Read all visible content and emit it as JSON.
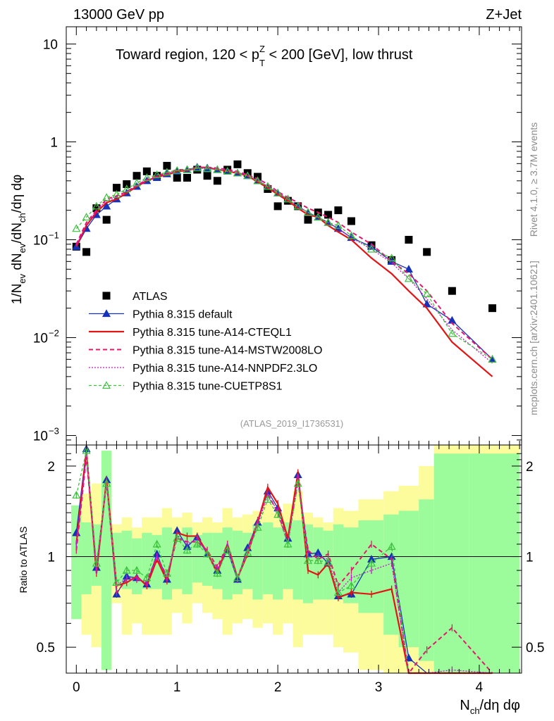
{
  "header": {
    "energy": "13000 GeV pp",
    "process": "Z+Jet",
    "plot_title": "Toward region, 120 < p_T^Z < 200 [GeV], low thrust",
    "side_note": "Rivet 4.1.0, ≥ 3.7M events",
    "site": "mcplots.cern.ch [arXiv:2401.10621]",
    "analysis_id": "(ATLAS_2019_I1736531)"
  },
  "axes": {
    "top_ylabel": "1/N_ev dN_ev/dN_ch/dη dφ",
    "bottom_ylabel": "Ratio to ATLAS",
    "xlabel": "N_ch/dη dφ",
    "x_ticks": [
      "0",
      "1",
      "2",
      "3",
      "4"
    ],
    "y_ticks_top": [
      "10",
      "1",
      "10^-1",
      "10^-2",
      "10^-3"
    ],
    "y_ticks_ratio": [
      "2",
      "1",
      "0.5"
    ]
  },
  "legend": [
    "ATLAS",
    "Pythia 8.315 default",
    "Pythia 8.315 tune-A14-CTEQL1",
    "Pythia 8.315 tune-A14-MSTW2008LO",
    "Pythia 8.315 tune-A14-NNPDF2.3LO",
    "Pythia 8.315 tune-CUETP8S1"
  ],
  "chart_data": {
    "type": "scatter",
    "title": "Toward region, 120 < p_T^Z < 200 [GeV], low thrust",
    "xlabel": "N_ch/dη dφ",
    "ylabel": "1/N_ev dN_ev/dN_ch/dη dφ",
    "xlim": [
      -0.1,
      4.42
    ],
    "ylim": [
      0.0008,
      15
    ],
    "yscale": "log",
    "ratio_ylim": [
      0.41,
      2.35
    ],
    "colors": {
      "atlas": "#000000",
      "default": "#1632b8",
      "cteql1": "#e41414",
      "mstw": "#e3186e",
      "nnpdf": "#d210d2",
      "cuetp8s1": "#3dc23d",
      "band_inner": "#9cfc9c",
      "band_outer": "#fcfc9c"
    },
    "bins": [
      [
        -0.05,
        0.05
      ],
      [
        0.05,
        0.15
      ],
      [
        0.15,
        0.25
      ],
      [
        0.25,
        0.35
      ],
      [
        0.35,
        0.45
      ],
      [
        0.45,
        0.55
      ],
      [
        0.55,
        0.65
      ],
      [
        0.65,
        0.75
      ],
      [
        0.75,
        0.85
      ],
      [
        0.85,
        0.95
      ],
      [
        0.95,
        1.05
      ],
      [
        1.05,
        1.15
      ],
      [
        1.15,
        1.25
      ],
      [
        1.25,
        1.35
      ],
      [
        1.35,
        1.45
      ],
      [
        1.45,
        1.55
      ],
      [
        1.55,
        1.65
      ],
      [
        1.65,
        1.75
      ],
      [
        1.75,
        1.85
      ],
      [
        1.85,
        1.95
      ],
      [
        1.95,
        2.05
      ],
      [
        2.05,
        2.15
      ],
      [
        2.15,
        2.25
      ],
      [
        2.25,
        2.35
      ],
      [
        2.35,
        2.45
      ],
      [
        2.45,
        2.55
      ],
      [
        2.55,
        2.65
      ],
      [
        2.65,
        2.8
      ],
      [
        2.8,
        3.05
      ],
      [
        3.05,
        3.2
      ],
      [
        3.2,
        3.4
      ],
      [
        3.4,
        3.55
      ],
      [
        3.55,
        3.9
      ],
      [
        3.9,
        4.4
      ]
    ],
    "band_outer": [
      [
        0.62,
        1.48
      ],
      [
        0.55,
        1.62
      ],
      [
        0.5,
        1.75
      ],
      [
        0.42,
        2.25
      ],
      [
        0.7,
        1.28
      ],
      [
        0.55,
        1.35
      ],
      [
        0.6,
        1.25
      ],
      [
        0.55,
        1.35
      ],
      [
        0.55,
        1.35
      ],
      [
        0.55,
        1.45
      ],
      [
        0.65,
        1.35
      ],
      [
        0.6,
        1.4
      ],
      [
        0.7,
        1.3
      ],
      [
        0.65,
        1.35
      ],
      [
        0.62,
        1.3
      ],
      [
        0.55,
        1.45
      ],
      [
        0.6,
        1.35
      ],
      [
        0.62,
        1.38
      ],
      [
        0.58,
        1.42
      ],
      [
        0.6,
        1.5
      ],
      [
        0.55,
        1.4
      ],
      [
        0.6,
        1.5
      ],
      [
        0.5,
        1.65
      ],
      [
        0.55,
        1.4
      ],
      [
        0.55,
        1.35
      ],
      [
        0.55,
        1.3
      ],
      [
        0.5,
        1.45
      ],
      [
        0.48,
        1.42
      ],
      [
        0.42,
        1.55
      ],
      [
        0.4,
        1.65
      ],
      [
        0.4,
        1.72
      ],
      [
        0.4,
        2.0
      ],
      [
        0.4,
        2.4
      ],
      [
        0.4,
        2.4
      ]
    ],
    "band_inner": [
      [
        0.62,
        1.48
      ],
      [
        0.75,
        1.3
      ],
      [
        0.8,
        1.28
      ],
      [
        0.42,
        2.25
      ],
      [
        0.8,
        1.2
      ],
      [
        0.78,
        1.22
      ],
      [
        0.75,
        1.15
      ],
      [
        0.78,
        1.2
      ],
      [
        0.78,
        1.18
      ],
      [
        0.72,
        1.25
      ],
      [
        0.78,
        1.2
      ],
      [
        0.75,
        1.25
      ],
      [
        0.82,
        1.18
      ],
      [
        0.8,
        1.2
      ],
      [
        0.78,
        1.2
      ],
      [
        0.72,
        1.25
      ],
      [
        0.75,
        1.22
      ],
      [
        0.78,
        1.2
      ],
      [
        0.72,
        1.28
      ],
      [
        0.75,
        1.3
      ],
      [
        0.72,
        1.25
      ],
      [
        0.78,
        1.3
      ],
      [
        0.72,
        1.32
      ],
      [
        0.7,
        1.28
      ],
      [
        0.72,
        1.25
      ],
      [
        0.72,
        1.22
      ],
      [
        0.72,
        1.28
      ],
      [
        0.7,
        1.25
      ],
      [
        0.65,
        1.32
      ],
      [
        0.55,
        1.38
      ],
      [
        0.5,
        1.42
      ],
      [
        0.45,
        1.55
      ],
      [
        0.4,
        2.2
      ],
      [
        0.4,
        2.2
      ]
    ],
    "x": [
      0,
      0.1,
      0.2,
      0.3,
      0.4,
      0.5,
      0.6,
      0.7,
      0.8,
      0.9,
      1.0,
      1.1,
      1.2,
      1.3,
      1.4,
      1.5,
      1.6,
      1.7,
      1.8,
      1.9,
      2.0,
      2.1,
      2.2,
      2.3,
      2.4,
      2.5,
      2.6,
      2.73,
      2.93,
      3.13,
      3.3,
      3.48,
      3.73,
      4.13
    ],
    "series": [
      {
        "key": "atlas",
        "name": "ATLAS",
        "marker": "square",
        "line": "none",
        "values": [
          0.085,
          0.075,
          0.21,
          0.16,
          0.34,
          0.37,
          0.45,
          0.5,
          0.45,
          0.57,
          0.43,
          0.43,
          0.52,
          0.45,
          0.4,
          0.52,
          0.59,
          0.48,
          0.44,
          0.33,
          0.22,
          0.25,
          0.22,
          0.16,
          0.19,
          0.18,
          0.2,
          0.155,
          0.088,
          0.062,
          0.1,
          0.075,
          0.03,
          0.02
        ]
      },
      {
        "key": "default",
        "name": "Pythia 8.315 default",
        "marker": "triangle-filled",
        "line": "solid",
        "values": [
          0.085,
          0.13,
          0.18,
          0.22,
          0.26,
          0.3,
          0.35,
          0.4,
          0.43,
          0.47,
          0.5,
          0.52,
          0.55,
          0.54,
          0.52,
          0.5,
          0.48,
          0.45,
          0.4,
          0.35,
          0.3,
          0.26,
          0.22,
          0.19,
          0.17,
          0.15,
          0.13,
          0.105,
          0.085,
          0.06,
          0.05,
          0.022,
          0.015,
          0.006
        ],
        "ratio": [
          1.2,
          2.28,
          0.92,
          1.8,
          0.75,
          0.86,
          0.85,
          0.81,
          1.02,
          0.84,
          1.22,
          1.08,
          1.16,
          1.02,
          0.9,
          1.05,
          0.84,
          1.07,
          1.3,
          1.65,
          1.45,
          1.15,
          1.87,
          1.02,
          1.03,
          0.95,
          0.74,
          0.75,
          0.98,
          1.0,
          0.46,
          0.35,
          0.3,
          0.3
        ]
      },
      {
        "key": "cteql1",
        "name": "Pythia 8.315 tune-A14-CTEQL1",
        "marker": "none",
        "line": "solid",
        "values": [
          0.085,
          0.14,
          0.19,
          0.24,
          0.26,
          0.3,
          0.35,
          0.4,
          0.44,
          0.46,
          0.5,
          0.51,
          0.54,
          0.55,
          0.52,
          0.5,
          0.48,
          0.45,
          0.39,
          0.34,
          0.29,
          0.25,
          0.21,
          0.18,
          0.17,
          0.14,
          0.12,
          0.1,
          0.065,
          0.045,
          0.03,
          0.02,
          0.009,
          0.004
        ],
        "ratio": [
          1.1,
          2.25,
          0.88,
          1.8,
          0.8,
          0.82,
          0.86,
          0.8,
          0.98,
          0.83,
          1.2,
          1.17,
          1.17,
          1.03,
          0.88,
          1.1,
          0.85,
          1.02,
          1.3,
          1.7,
          1.5,
          1.15,
          1.9,
          0.9,
          0.87,
          0.95,
          0.73,
          0.76,
          0.75,
          0.78,
          0.3,
          0.3,
          0.3,
          0.3
        ]
      },
      {
        "key": "mstw",
        "name": "Pythia 8.315 tune-A14-MSTW2008LO",
        "marker": "none",
        "line": "dashed",
        "values": [
          0.09,
          0.15,
          0.2,
          0.26,
          0.28,
          0.31,
          0.36,
          0.41,
          0.45,
          0.48,
          0.52,
          0.52,
          0.55,
          0.55,
          0.54,
          0.52,
          0.5,
          0.46,
          0.42,
          0.37,
          0.31,
          0.27,
          0.24,
          0.21,
          0.19,
          0.17,
          0.15,
          0.12,
          0.09,
          0.06,
          0.045,
          0.03,
          0.014,
          0.006
        ],
        "ratio": [
          1.05,
          2.15,
          0.9,
          1.78,
          0.76,
          0.84,
          0.84,
          0.83,
          1.0,
          0.86,
          1.15,
          1.12,
          1.12,
          1.05,
          0.92,
          1.1,
          0.85,
          1.05,
          1.32,
          1.62,
          1.4,
          1.12,
          1.78,
          1.05,
          0.98,
          1.02,
          0.8,
          0.9,
          1.1,
          0.98,
          0.41,
          0.49,
          0.58,
          0.3
        ]
      },
      {
        "key": "nnpdf",
        "name": "Pythia 8.315 tune-A14-NNPDF2.3LO",
        "marker": "none",
        "line": "dotted",
        "values": [
          0.088,
          0.14,
          0.2,
          0.25,
          0.27,
          0.31,
          0.36,
          0.4,
          0.44,
          0.47,
          0.51,
          0.51,
          0.54,
          0.54,
          0.53,
          0.51,
          0.49,
          0.45,
          0.41,
          0.35,
          0.3,
          0.26,
          0.22,
          0.19,
          0.17,
          0.15,
          0.13,
          0.105,
          0.08,
          0.058,
          0.04,
          0.025,
          0.012,
          0.0055
        ],
        "ratio": [
          1.1,
          2.2,
          0.9,
          1.75,
          0.8,
          0.85,
          0.85,
          0.82,
          1.0,
          0.85,
          1.18,
          1.1,
          1.15,
          1.03,
          0.9,
          1.08,
          0.84,
          1.04,
          1.28,
          1.6,
          1.42,
          1.1,
          1.82,
          1.0,
          1.0,
          0.98,
          0.76,
          0.85,
          0.9,
          0.95,
          0.38,
          0.38,
          0.42,
          0.3
        ]
      },
      {
        "key": "cuetp8s1",
        "name": "Pythia 8.315 tune-CUETP8S1",
        "marker": "triangle-open",
        "line": "dashed",
        "values": [
          0.13,
          0.17,
          0.22,
          0.27,
          0.29,
          0.33,
          0.38,
          0.43,
          0.46,
          0.49,
          0.51,
          0.52,
          0.54,
          0.53,
          0.52,
          0.5,
          0.48,
          0.45,
          0.4,
          0.35,
          0.3,
          0.26,
          0.22,
          0.19,
          0.17,
          0.15,
          0.14,
          0.11,
          0.08,
          0.065,
          0.04,
          0.028,
          0.011,
          0.006
        ],
        "ratio": [
          1.6,
          2.25,
          0.95,
          1.75,
          0.82,
          0.9,
          0.9,
          0.85,
          1.1,
          0.88,
          1.15,
          1.05,
          1.1,
          1.02,
          0.88,
          1.05,
          0.85,
          1.03,
          1.25,
          1.55,
          1.38,
          1.1,
          1.75,
          0.97,
          0.97,
          0.96,
          0.76,
          0.8,
          0.95,
          1.08,
          0.4,
          0.4,
          0.37,
          0.3
        ]
      }
    ]
  }
}
